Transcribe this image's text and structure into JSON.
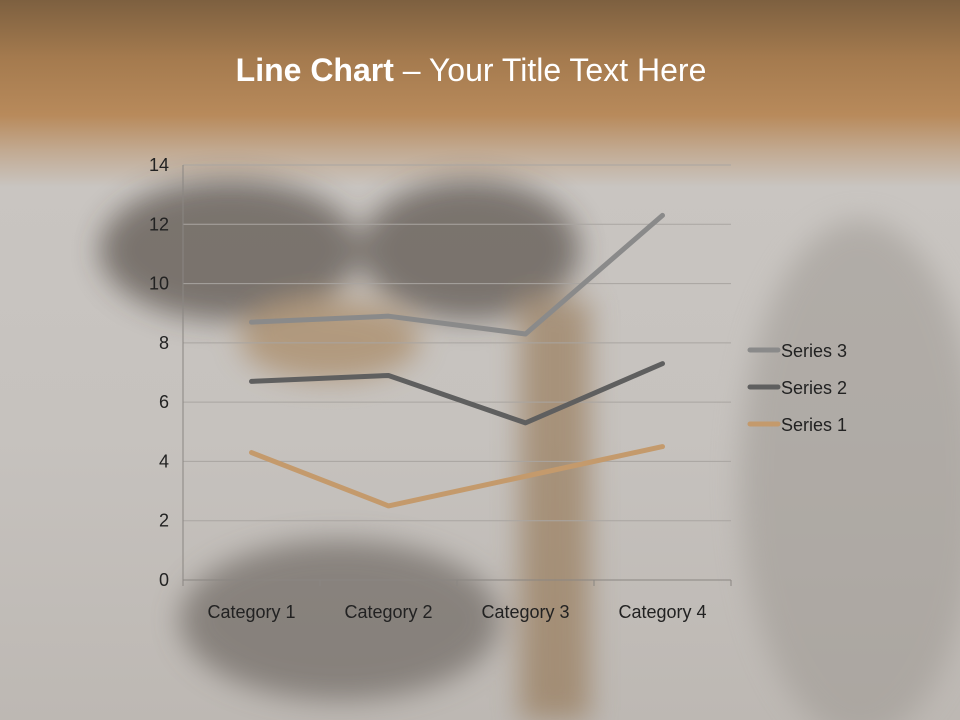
{
  "title": {
    "bold": "Line Chart",
    "rest": " – Your Title Text Here"
  },
  "chart_data": {
    "type": "line",
    "stacked": true,
    "categories": [
      "Category 1",
      "Category 2",
      "Category 3",
      "Category 4"
    ],
    "series": [
      {
        "name": "Series 1",
        "values": [
          4.3,
          2.5,
          3.5,
          4.5
        ],
        "color": "#c49a6c"
      },
      {
        "name": "Series 2",
        "values": [
          2.4,
          4.4,
          1.8,
          2.8
        ],
        "color": "#5f5f5f"
      },
      {
        "name": "Series 3",
        "values": [
          2,
          2,
          3,
          5
        ],
        "color": "#8a8a8a"
      }
    ],
    "ylim": [
      0,
      14
    ],
    "yticks": [
      0,
      2,
      4,
      6,
      8,
      10,
      12,
      14
    ],
    "grid": true,
    "legend": "right",
    "legend_order": [
      "Series 3",
      "Series 2",
      "Series 1"
    ]
  }
}
